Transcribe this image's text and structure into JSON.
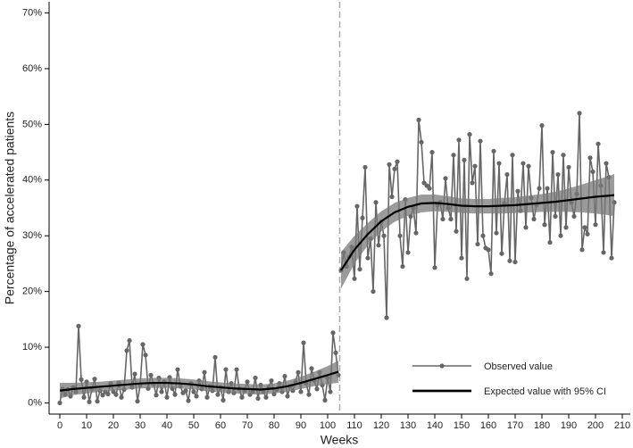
{
  "chart_data": {
    "type": "line",
    "xlabel": "Weeks",
    "ylabel": "Percentage of accelerated patients",
    "xlim": [
      -4,
      213
    ],
    "ylim": [
      -2,
      72
    ],
    "xticks": [
      0,
      10,
      20,
      30,
      40,
      50,
      60,
      70,
      80,
      90,
      100,
      110,
      120,
      130,
      140,
      150,
      160,
      170,
      180,
      190,
      200,
      210
    ],
    "yticks": [
      {
        "value": 0,
        "label": "0%"
      },
      {
        "value": 10,
        "label": "10%"
      },
      {
        "value": 20,
        "label": "20%"
      },
      {
        "value": 30,
        "label": "30%"
      },
      {
        "value": 40,
        "label": "40%"
      },
      {
        "value": 50,
        "label": "50%"
      },
      {
        "value": 60,
        "label": "60%"
      },
      {
        "value": 70,
        "label": "70%"
      }
    ],
    "intervention_x": 104.5,
    "intervention_color": "#aaaaaa",
    "legend": "lower right",
    "series": [
      {
        "name": "Observed value",
        "color": "#666666",
        "markers": true,
        "x": [
          0,
          1,
          2,
          3,
          4,
          5,
          6,
          7,
          8,
          9,
          10,
          11,
          12,
          13,
          14,
          15,
          16,
          17,
          18,
          19,
          20,
          21,
          22,
          23,
          24,
          25,
          26,
          27,
          28,
          29,
          30,
          31,
          32,
          33,
          34,
          35,
          36,
          37,
          38,
          39,
          40,
          41,
          42,
          43,
          44,
          45,
          46,
          47,
          48,
          49,
          50,
          51,
          52,
          53,
          54,
          55,
          56,
          57,
          58,
          59,
          60,
          61,
          62,
          63,
          64,
          65,
          66,
          67,
          68,
          69,
          70,
          71,
          72,
          73,
          74,
          75,
          76,
          77,
          78,
          79,
          80,
          81,
          82,
          83,
          84,
          85,
          86,
          87,
          88,
          89,
          90,
          91,
          92,
          93,
          94,
          95,
          96,
          97,
          98,
          99,
          100,
          101,
          102,
          103,
          104,
          105,
          106,
          107,
          108,
          109,
          110,
          111,
          112,
          113,
          114,
          115,
          116,
          117,
          118,
          119,
          120,
          121,
          122,
          123,
          124,
          125,
          126,
          127,
          128,
          129,
          130,
          131,
          132,
          133,
          134,
          135,
          136,
          137,
          138,
          139,
          140,
          141,
          142,
          143,
          144,
          145,
          146,
          147,
          148,
          149,
          150,
          151,
          152,
          153,
          154,
          155,
          156,
          157,
          158,
          159,
          160,
          161,
          162,
          163,
          164,
          165,
          166,
          167,
          168,
          169,
          170,
          171,
          172,
          173,
          174,
          175,
          176,
          177,
          178,
          179,
          180,
          181,
          182,
          183,
          184,
          185,
          186,
          187,
          188,
          189,
          190,
          191,
          192,
          193,
          194,
          195,
          196,
          197,
          198,
          199,
          200,
          201,
          202,
          203,
          204,
          205,
          206,
          207
        ],
        "values": [
          0,
          2.5,
          1.5,
          2.4,
          1.2,
          2.8,
          2.0,
          13.8,
          4.2,
          1.0,
          3.8,
          0.2,
          2.5,
          4.3,
          0.3,
          2.2,
          1.4,
          2.0,
          1.6,
          3.5,
          2.0,
          1.5,
          3.6,
          1.0,
          2.4,
          9.4,
          11.2,
          2.8,
          5.2,
          0.3,
          3.2,
          10.5,
          8.6,
          2.6,
          5.0,
          3.4,
          1.4,
          4.5,
          2.0,
          3.8,
          1.0,
          4.6,
          2.6,
          1.5,
          6.0,
          3.0,
          1.8,
          2.2,
          0.4,
          3.5,
          2.0,
          1.2,
          4.0,
          2.5,
          5.5,
          1.0,
          3.0,
          2.2,
          8.2,
          1.5,
          2.8,
          0.5,
          6.0,
          2.0,
          3.5,
          1.8,
          6.0,
          2.5,
          1.0,
          2.2,
          3.8,
          1.5,
          2.0,
          4.5,
          0.8,
          3.2,
          2.0,
          1.0,
          2.8,
          4.0,
          1.6,
          2.4,
          3.5,
          2.0,
          4.8,
          1.2,
          3.0,
          2.2,
          3.8,
          5.5,
          2.0,
          10.8,
          3.5,
          1.5,
          6.2,
          4.0,
          2.5,
          5.5,
          3.2,
          0.5,
          4.5,
          2.0,
          12.6,
          9.0,
          5.0,
          23.8,
          27.0,
          24.5,
          26.2,
          28.0,
          22.3,
          35.3,
          24.0,
          33.2,
          42.3,
          26.0,
          29.5,
          20.0,
          36.0,
          28.3,
          32.5,
          30.0,
          15.3,
          42.8,
          37.0,
          42.0,
          43.3,
          30.0,
          24.5,
          36.5,
          27.0,
          33.5,
          35.0,
          30.5,
          50.8,
          46.8,
          39.5,
          39.0,
          38.5,
          45.0,
          24.3,
          35.5,
          36.0,
          33.0,
          40.3,
          35.0,
          33.0,
          44.5,
          30.8,
          47.2,
          26.0,
          43.6,
          22.3,
          48.2,
          39.5,
          42.5,
          28.5,
          47.0,
          30.0,
          27.8,
          27.5,
          23.2,
          45.2,
          30.5,
          43.0,
          26.8,
          35.8,
          41.0,
          25.5,
          44.5,
          25.3,
          38.0,
          34.5,
          43.0,
          31.5,
          42.5,
          36.8,
          33.0,
          35.5,
          38.5,
          49.8,
          32.0,
          38.5,
          28.8,
          45.0,
          33.5,
          41.0,
          30.0,
          44.5,
          31.5,
          42.3,
          36.0,
          33.5,
          37.5,
          52.0,
          27.5,
          31.5,
          30.3,
          44.0,
          41.5,
          32.0,
          46.5,
          39.0,
          27.0,
          43.0,
          40.5,
          26.0,
          36.0
        ]
      },
      {
        "name": "Expected value with 95% CI",
        "color": "#000000",
        "band_color": "#7a7a7a",
        "x": [
          0,
          5,
          10,
          15,
          20,
          25,
          30,
          35,
          40,
          45,
          50,
          55,
          60,
          65,
          70,
          75,
          80,
          85,
          90,
          95,
          100,
          104,
          105,
          110,
          115,
          120,
          125,
          130,
          135,
          140,
          145,
          150,
          155,
          160,
          165,
          170,
          175,
          180,
          185,
          190,
          195,
          200,
          205,
          207
        ],
        "values": [
          2.2,
          2.5,
          2.7,
          2.9,
          3.1,
          3.3,
          3.5,
          3.6,
          3.6,
          3.5,
          3.3,
          3.0,
          2.8,
          2.6,
          2.5,
          2.4,
          2.6,
          3.0,
          3.6,
          4.3,
          5.0,
          5.6,
          23.8,
          27.5,
          30.3,
          32.6,
          34.2,
          35.2,
          35.8,
          35.9,
          35.7,
          35.4,
          35.3,
          35.3,
          35.4,
          35.5,
          35.7,
          35.9,
          36.1,
          36.4,
          36.7,
          37.0,
          37.2,
          37.3
        ],
        "lower": [
          0.8,
          1.4,
          1.7,
          2.0,
          2.2,
          2.4,
          2.6,
          2.7,
          2.7,
          2.6,
          2.4,
          2.1,
          1.9,
          1.7,
          1.6,
          1.5,
          1.7,
          2.0,
          2.5,
          3.0,
          3.4,
          3.6,
          20.5,
          25.0,
          28.3,
          30.8,
          32.5,
          33.6,
          34.2,
          34.4,
          34.3,
          34.1,
          34.0,
          34.0,
          34.0,
          34.1,
          34.2,
          34.3,
          34.3,
          34.3,
          34.2,
          34.0,
          33.7,
          33.5
        ],
        "upper": [
          3.6,
          3.6,
          3.7,
          3.8,
          4.0,
          4.2,
          4.4,
          4.5,
          4.5,
          4.4,
          4.2,
          3.9,
          3.7,
          3.5,
          3.4,
          3.3,
          3.5,
          4.0,
          4.7,
          5.6,
          6.6,
          7.6,
          27.1,
          30.0,
          32.3,
          34.4,
          35.9,
          36.8,
          37.4,
          37.4,
          37.1,
          36.7,
          36.6,
          36.6,
          36.8,
          36.9,
          37.2,
          37.5,
          37.9,
          38.5,
          39.2,
          40.0,
          40.7,
          41.1
        ]
      }
    ]
  }
}
